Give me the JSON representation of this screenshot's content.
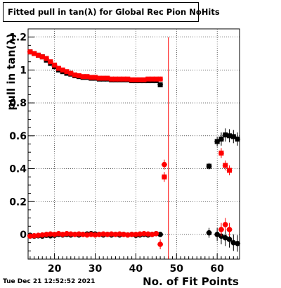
{
  "title": "Fitted pull in tan(λ) for Global Rec Pion NoHits",
  "timestamp": "Tue Dec 21 12:52:52 2021",
  "chart_data": {
    "type": "scatter",
    "xlabel": "No. of Fit Points",
    "ylabel": "pull in tan(λ)",
    "xlim": [
      13.5,
      65.5
    ],
    "ylim": [
      -0.15,
      1.25
    ],
    "x_ticks": [
      20,
      30,
      40,
      50,
      60
    ],
    "y_ticks": [
      0,
      0.2,
      0.4,
      0.6,
      0.8,
      1,
      1.2
    ],
    "x_tick_labels": [
      "20",
      "30",
      "40",
      "50",
      "60"
    ],
    "y_tick_labels": [
      "0",
      "0.2",
      "0.4",
      "0.6",
      "0.8",
      "1",
      "1.2"
    ],
    "grid": true,
    "colors": {
      "black": "#000000",
      "red": "#ff0000"
    },
    "vertical_line": {
      "x": 48,
      "color": "#ff0000"
    },
    "series": [
      {
        "color": "#000000",
        "marker": "square",
        "points": [
          [
            14,
            1.11
          ],
          [
            15,
            1.1
          ],
          [
            16,
            1.09
          ],
          [
            17,
            1.08
          ],
          [
            18,
            1.06
          ],
          [
            19,
            1.04
          ],
          [
            20,
            1.02
          ],
          [
            21,
            1.0
          ],
          [
            22,
            0.99
          ],
          [
            23,
            0.98
          ],
          [
            24,
            0.975
          ],
          [
            25,
            0.965
          ],
          [
            26,
            0.96
          ],
          [
            27,
            0.955
          ],
          [
            28,
            0.955
          ],
          [
            29,
            0.95
          ],
          [
            30,
            0.95
          ],
          [
            31,
            0.945
          ],
          [
            32,
            0.945
          ],
          [
            33,
            0.945
          ],
          [
            34,
            0.94
          ],
          [
            35,
            0.94
          ],
          [
            36,
            0.94
          ],
          [
            37,
            0.94
          ],
          [
            38,
            0.94
          ],
          [
            39,
            0.935
          ],
          [
            40,
            0.935
          ],
          [
            41,
            0.935
          ],
          [
            42,
            0.935
          ],
          [
            43,
            0.935
          ],
          [
            44,
            0.935
          ],
          [
            45,
            0.935
          ],
          [
            46,
            0.91
          ],
          [
            58,
            0.415
          ],
          [
            60,
            0.565
          ],
          [
            61,
            0.58
          ],
          [
            62,
            0.605
          ],
          [
            63,
            0.6
          ],
          [
            64,
            0.595
          ],
          [
            65,
            0.58
          ]
        ],
        "errors": [
          0.01,
          0.01,
          0.01,
          0.01,
          0.01,
          0.01,
          0.01,
          0.01,
          0.01,
          0.01,
          0.01,
          0.01,
          0.01,
          0.01,
          0.01,
          0.01,
          0.01,
          0.01,
          0.01,
          0.01,
          0.01,
          0.01,
          0.01,
          0.01,
          0.01,
          0.01,
          0.01,
          0.01,
          0.01,
          0.01,
          0.01,
          0.01,
          0.015,
          0.02,
          0.03,
          0.04,
          0.04,
          0.04,
          0.04,
          0.04
        ]
      },
      {
        "color": "#ff0000",
        "marker": "square",
        "points": [
          [
            14,
            1.11
          ],
          [
            15,
            1.1
          ],
          [
            16,
            1.09
          ],
          [
            17,
            1.08
          ],
          [
            18,
            1.07
          ],
          [
            19,
            1.05
          ],
          [
            20,
            1.03
          ],
          [
            21,
            1.01
          ],
          [
            22,
            1.0
          ],
          [
            23,
            0.99
          ],
          [
            24,
            0.98
          ],
          [
            25,
            0.97
          ],
          [
            26,
            0.965
          ],
          [
            27,
            0.96
          ],
          [
            28,
            0.96
          ],
          [
            29,
            0.955
          ],
          [
            30,
            0.955
          ],
          [
            31,
            0.95
          ],
          [
            32,
            0.95
          ],
          [
            33,
            0.95
          ],
          [
            34,
            0.945
          ],
          [
            35,
            0.945
          ],
          [
            36,
            0.945
          ],
          [
            37,
            0.945
          ],
          [
            38,
            0.945
          ],
          [
            39,
            0.94
          ],
          [
            40,
            0.94
          ],
          [
            41,
            0.94
          ],
          [
            42,
            0.94
          ],
          [
            43,
            0.945
          ],
          [
            44,
            0.945
          ],
          [
            45,
            0.945
          ],
          [
            46,
            0.945
          ],
          [
            47,
            0.35
          ],
          [
            61,
            0.495
          ],
          [
            62,
            0.42
          ],
          [
            63,
            0.39
          ]
        ],
        "errors": [
          0.01,
          0.01,
          0.01,
          0.01,
          0.01,
          0.01,
          0.01,
          0.01,
          0.01,
          0.01,
          0.01,
          0.01,
          0.01,
          0.01,
          0.01,
          0.01,
          0.01,
          0.01,
          0.01,
          0.01,
          0.01,
          0.01,
          0.01,
          0.01,
          0.01,
          0.01,
          0.01,
          0.01,
          0.01,
          0.01,
          0.01,
          0.01,
          0.015,
          0.03,
          0.03,
          0.03,
          0.03
        ]
      },
      {
        "color": "#000000",
        "marker": "circle",
        "points": [
          [
            14,
            -0.005
          ],
          [
            15,
            -0.01
          ],
          [
            16,
            -0.008
          ],
          [
            17,
            -0.01
          ],
          [
            18,
            -0.005
          ],
          [
            19,
            -0.008
          ],
          [
            20,
            -0.005
          ],
          [
            21,
            0.0
          ],
          [
            22,
            -0.003
          ],
          [
            23,
            0.0
          ],
          [
            24,
            -0.003
          ],
          [
            25,
            0.0
          ],
          [
            26,
            -0.003
          ],
          [
            27,
            0.0
          ],
          [
            28,
            0.003
          ],
          [
            29,
            0.005
          ],
          [
            30,
            0.003
          ],
          [
            31,
            0.0
          ],
          [
            32,
            -0.003
          ],
          [
            33,
            0.0
          ],
          [
            34,
            -0.003
          ],
          [
            35,
            0.0
          ],
          [
            36,
            -0.003
          ],
          [
            37,
            0.0
          ],
          [
            38,
            -0.003
          ],
          [
            39,
            0.0
          ],
          [
            40,
            -0.005
          ],
          [
            41,
            -0.003
          ],
          [
            42,
            0.0
          ],
          [
            43,
            -0.003
          ],
          [
            44,
            0.0
          ],
          [
            45,
            0.005
          ],
          [
            46,
            0.0
          ],
          [
            58,
            0.01
          ],
          [
            60,
            0.0
          ],
          [
            61,
            -0.01
          ],
          [
            62,
            -0.02
          ],
          [
            63,
            -0.03
          ],
          [
            64,
            -0.05
          ],
          [
            65,
            -0.055
          ]
        ],
        "errors": [
          0.015,
          0.012,
          0.012,
          0.012,
          0.012,
          0.012,
          0.012,
          0.012,
          0.012,
          0.012,
          0.012,
          0.012,
          0.012,
          0.012,
          0.012,
          0.012,
          0.012,
          0.012,
          0.012,
          0.012,
          0.012,
          0.012,
          0.012,
          0.012,
          0.012,
          0.012,
          0.012,
          0.012,
          0.012,
          0.012,
          0.012,
          0.012,
          0.015,
          0.03,
          0.04,
          0.05,
          0.05,
          0.05,
          0.05,
          0.05
        ]
      },
      {
        "color": "#ff0000",
        "marker": "circle",
        "points": [
          [
            14,
            -0.01
          ],
          [
            15,
            -0.008
          ],
          [
            16,
            -0.005
          ],
          [
            17,
            -0.003
          ],
          [
            18,
            0.0
          ],
          [
            19,
            0.003
          ],
          [
            20,
            0.0
          ],
          [
            21,
            0.005
          ],
          [
            22,
            0.0
          ],
          [
            23,
            0.005
          ],
          [
            24,
            0.003
          ],
          [
            25,
            0.0
          ],
          [
            26,
            0.003
          ],
          [
            27,
            0.0
          ],
          [
            28,
            -0.003
          ],
          [
            29,
            0.0
          ],
          [
            30,
            -0.003
          ],
          [
            31,
            0.0
          ],
          [
            32,
            0.003
          ],
          [
            33,
            0.0
          ],
          [
            34,
            0.003
          ],
          [
            35,
            0.0
          ],
          [
            36,
            0.003
          ],
          [
            37,
            0.0
          ],
          [
            38,
            -0.003
          ],
          [
            39,
            0.0
          ],
          [
            40,
            0.0
          ],
          [
            41,
            0.003
          ],
          [
            42,
            0.005
          ],
          [
            43,
            0.003
          ],
          [
            44,
            0.0
          ],
          [
            45,
            0.005
          ],
          [
            46,
            -0.06
          ],
          [
            47,
            0.425
          ],
          [
            61,
            0.03
          ],
          [
            62,
            0.06
          ],
          [
            63,
            0.03
          ]
        ],
        "errors": [
          0.012,
          0.012,
          0.012,
          0.012,
          0.012,
          0.012,
          0.012,
          0.012,
          0.012,
          0.012,
          0.012,
          0.012,
          0.012,
          0.012,
          0.012,
          0.012,
          0.012,
          0.012,
          0.012,
          0.012,
          0.012,
          0.012,
          0.012,
          0.012,
          0.012,
          0.012,
          0.012,
          0.012,
          0.012,
          0.012,
          0.012,
          0.012,
          0.03,
          0.03,
          0.04,
          0.04,
          0.04
        ]
      }
    ]
  }
}
